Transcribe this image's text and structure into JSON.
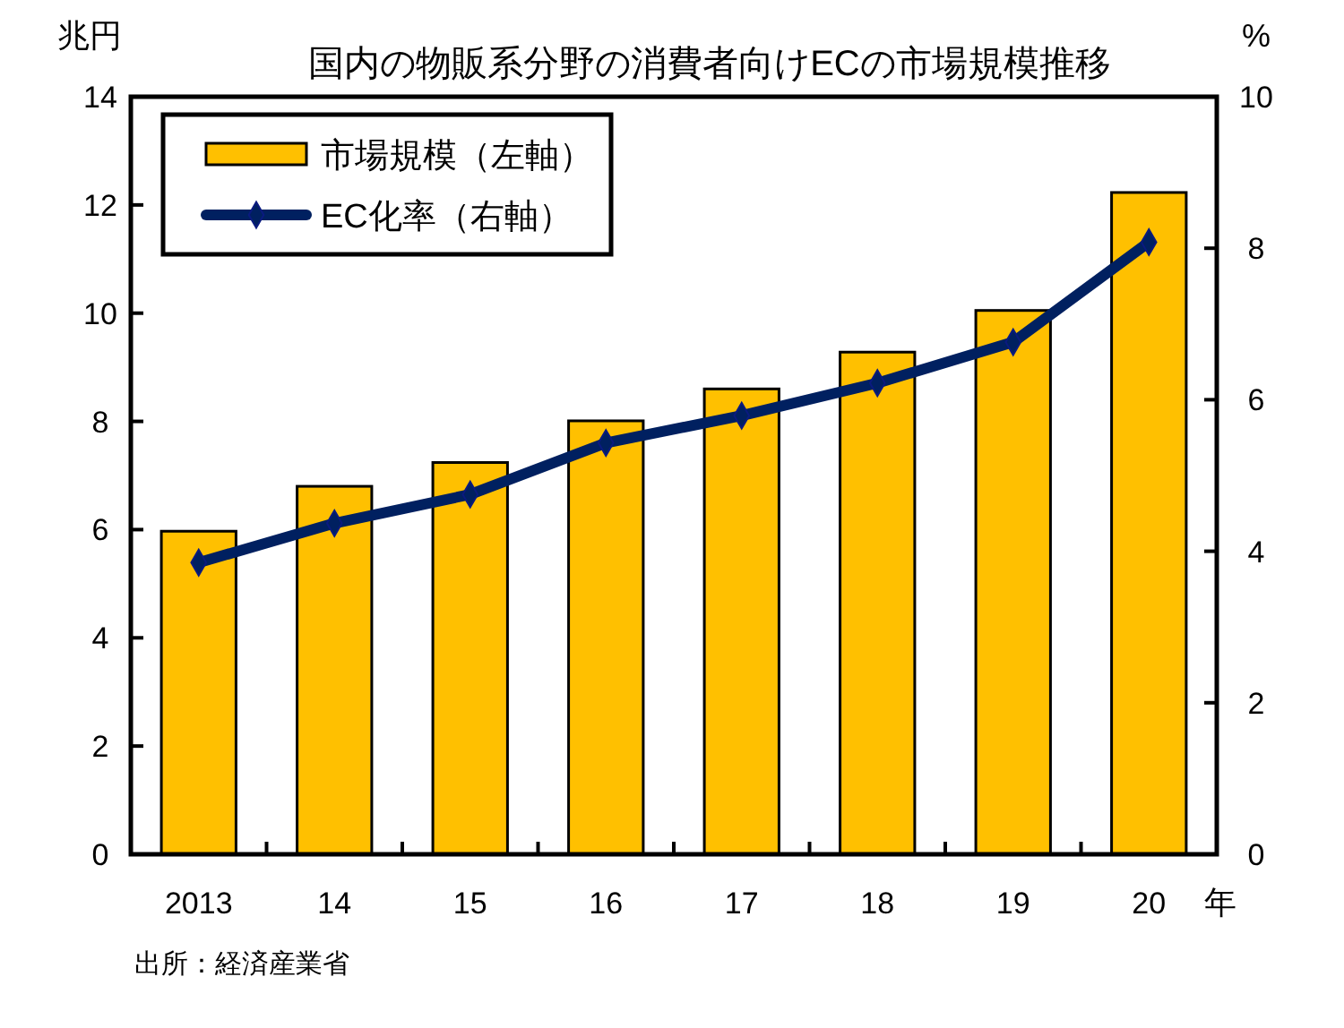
{
  "chart_data": {
    "type": "bar",
    "title": "国内の物販系分野の消費者向けECの市場規模推移",
    "ylabel": "兆円",
    "y2label": "%",
    "xlabel": "年",
    "categories": [
      "2013",
      "14",
      "15",
      "16",
      "17",
      "18",
      "19",
      "20"
    ],
    "series": [
      {
        "name": "市場規模（左軸）",
        "color": "#ffc000",
        "values": [
          5.97,
          6.8,
          7.24,
          8.01,
          8.6,
          9.28,
          10.05,
          12.23
        ]
      },
      {
        "name": "EC化率（右軸）",
        "type": "line",
        "axis": "y2",
        "color": "#002060",
        "marker": "diamond",
        "values": [
          3.85,
          4.37,
          4.75,
          5.43,
          5.79,
          6.22,
          6.76,
          8.08
        ]
      }
    ],
    "ylim": [
      0,
      14
    ],
    "yticks": [
      0,
      2,
      4,
      6,
      8,
      10,
      12,
      14
    ],
    "y2lim": [
      0,
      10
    ],
    "y2ticks": [
      0,
      2,
      4,
      6,
      8,
      10
    ],
    "legend": "top left",
    "grid": false,
    "annotations": [
      "出所：経済産業省"
    ]
  }
}
